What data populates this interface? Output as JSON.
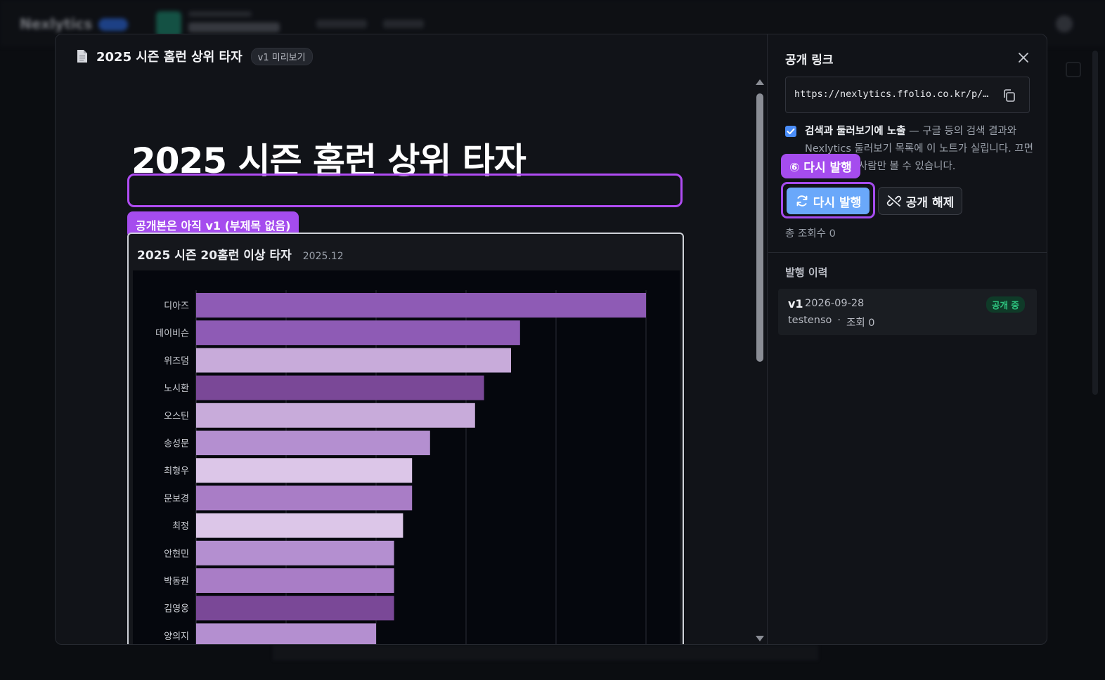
{
  "background": {
    "logo": "Nexlytics"
  },
  "modal": {
    "doc_title": "2025 시즌 홈런 상위 타자",
    "version_chip": "v1 미리보기",
    "preview": {
      "heading": "2025 시즌 홈런 상위 타자",
      "subtitle_callout": "공개본은 아직 v1 (부제목 없음)",
      "chart_card_title": "2025 시즌 20홈런 이상 타자",
      "chart_card_date": "2025.12"
    },
    "publish_panel": {
      "title": "공개 링크",
      "url": "https://nexlytics.ffolio.co.kr/p/…",
      "exposure_checked": true,
      "exposure_bold": "검색과 둘러보기에 노출",
      "exposure_desc": " — 구글 등의 검색 결과와 Nexlytics 둘러보기 목록에 이 노트가 실립니다. 끄면 링크를 아는 사람만 볼 수 있습니다.",
      "step_callout": "⑥ 다시 발행",
      "republish_label": "다시 발행",
      "unpublish_label": "공개 해제",
      "total_views": "총 조회수 0",
      "history_title": "발행 이력",
      "history": [
        {
          "version": "v1",
          "date": "2026-09-28",
          "badge": "공개 중",
          "author": "testenso",
          "sep": "·",
          "views": "조회 0"
        }
      ]
    }
  },
  "chart_data": {
    "type": "bar",
    "orientation": "horizontal",
    "title": "2025 시즌 20홈런 이상 타자",
    "categories": [
      "디아즈",
      "데이비슨",
      "위즈덤",
      "노시환",
      "오스틴",
      "송성문",
      "최형우",
      "문보경",
      "최정",
      "안현민",
      "박동원",
      "김영웅",
      "양의지"
    ],
    "values": [
      50,
      36,
      35,
      32,
      31,
      26,
      24,
      24,
      23,
      22,
      22,
      22,
      20
    ],
    "colors": [
      "#8e5bb5",
      "#8e5bb5",
      "#c8abda",
      "#7a4897",
      "#c8abda",
      "#b48fd0",
      "#dcc6e8",
      "#a97dc6",
      "#dcc6e8",
      "#b48fd0",
      "#a97dc6",
      "#7a4897",
      "#b48fd0"
    ],
    "xlim": [
      0,
      50
    ],
    "grid": true
  }
}
